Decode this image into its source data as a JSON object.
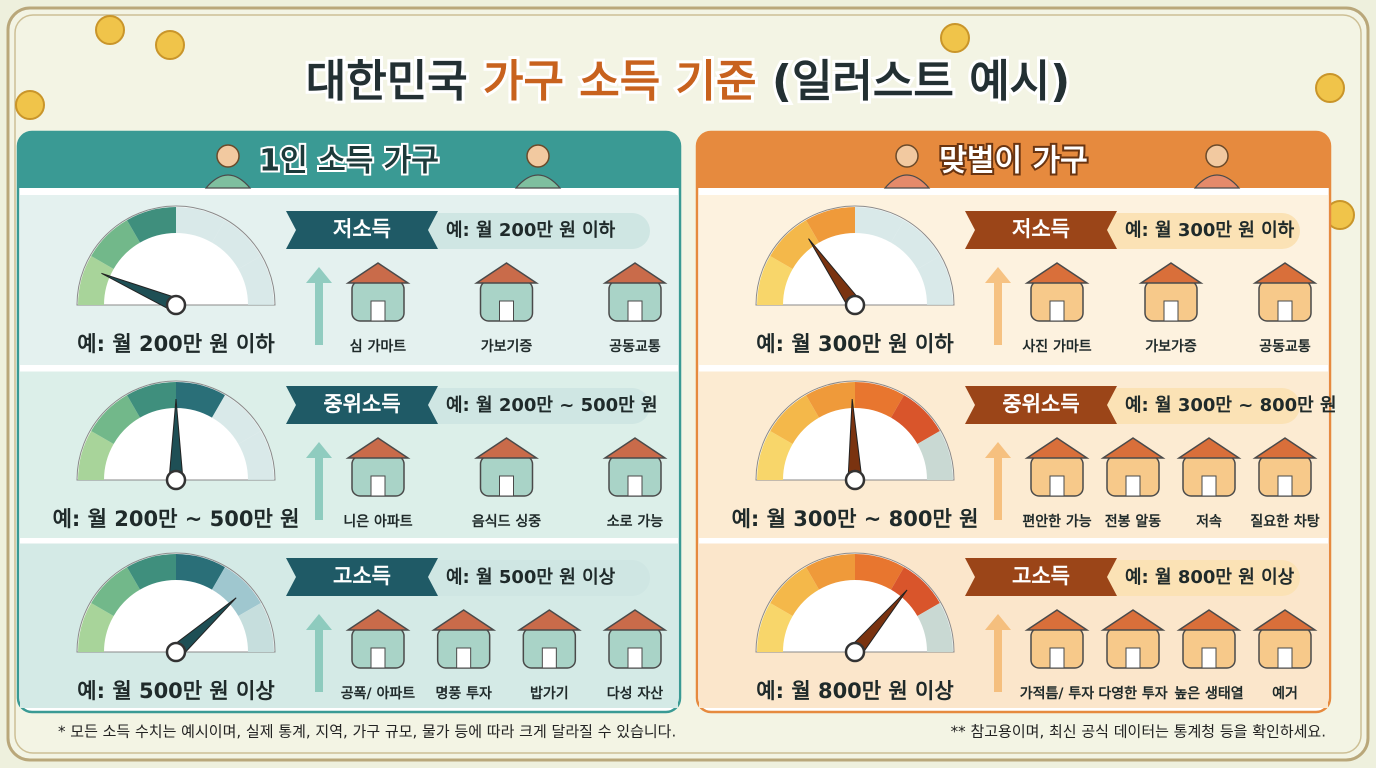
{
  "header": {
    "title_parts": [
      "대한민국",
      "가구 소득 기준",
      "(일러스트 예시)"
    ]
  },
  "panels": [
    {
      "title": "1인 소득 가구",
      "tiers": [
        {
          "name": "저소득",
          "range": "예: 월 200만 원 이하",
          "gauge_label": "예: 월 200만 원 이하",
          "items": [
            "심 가마트",
            "가보기증",
            "공동교통"
          ]
        },
        {
          "name": "중위소득",
          "range": "예: 월 200만 ~ 500만 원",
          "gauge_label": "예: 월 200만 ~ 500만 원",
          "items": [
            "니은 아파트",
            "음식드 싱중",
            "소로 가능"
          ]
        },
        {
          "name": "고소득",
          "range": "예: 월 500만 원 이상",
          "gauge_label": "예: 월 500만 원 이상",
          "items": [
            "공폭/ 아파트",
            "명풍 투자",
            "밥가기",
            "다성 자산"
          ]
        }
      ]
    },
    {
      "title": "맞벌이 가구",
      "tiers": [
        {
          "name": "저소득",
          "range": "예: 월 300만 원 이하",
          "gauge_label": "예: 월 300만 원 이하",
          "items": [
            "사진 가마트",
            "가보가증",
            "공동교통"
          ]
        },
        {
          "name": "중위소득",
          "range": "예: 월 300만 ~ 800만 원",
          "gauge_label": "예: 월 300만 ~ 800만 원",
          "items": [
            "편안한 가능",
            "전봉 알동",
            "저속",
            "질요한 차탕"
          ]
        },
        {
          "name": "고소득",
          "range": "예: 월 800만 원 이상",
          "gauge_label": "예: 월 800만 원 이상",
          "items": [
            "가적틈/ 투자",
            "다영한 투자",
            "높은 생태열",
            "예거"
          ]
        }
      ]
    }
  ],
  "footnotes": [
    "* 모든 소득 수치는 예시이며, 실제 통계, 지역, 가구 규모, 물가 등에 따라 크게 달라질 수 있습니다.",
    "** 참고용이며, 최신 공식 데이터는 통계청 등을 확인하세요."
  ]
}
